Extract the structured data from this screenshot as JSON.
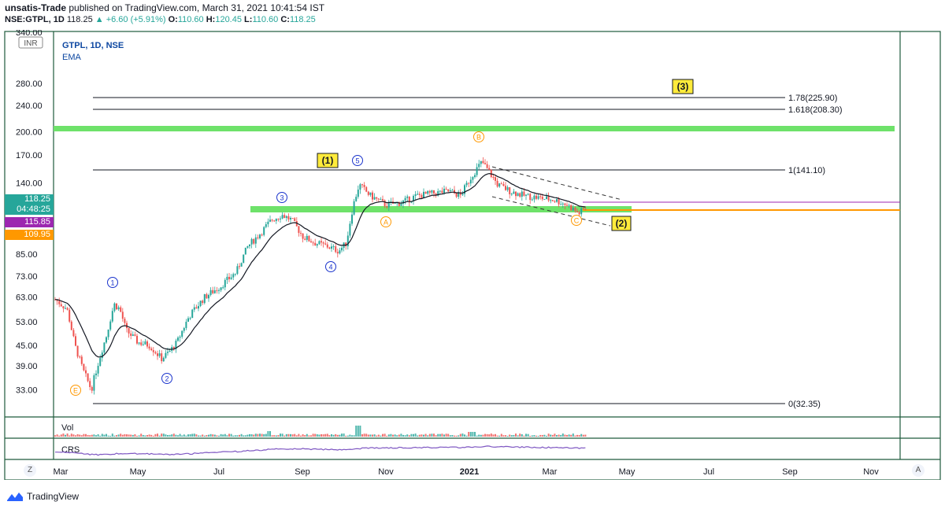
{
  "header": {
    "author": "unsatis-Trade",
    "published": "published on TradingView.com, March 31, 2021 10:41:54 IST",
    "symbol": "NSE:GTPL, 1D",
    "last": "118.25",
    "change": "▲ +6.60 (+5.91%)",
    "o_label": "O:",
    "o": "110.60",
    "h_label": "H:",
    "h": "120.45",
    "l_label": "L:",
    "l": "110.60",
    "c_label": "C:",
    "c": "118.25"
  },
  "legend": {
    "title": "GTPL, 1D, NSE",
    "indicator": "EMA"
  },
  "price_axis": {
    "currency": "INR",
    "ticks": [
      "340.00",
      "280.00",
      "240.00",
      "200.00",
      "170.00",
      "140.00",
      "85.00",
      "73.00",
      "63.00",
      "53.00",
      "45.00",
      "39.00",
      "33.00"
    ],
    "badges": [
      {
        "value": "118.25",
        "countdown": "04:48:25",
        "color": "#26a69a"
      },
      {
        "value": "115.85",
        "color": "#9c27b0"
      },
      {
        "value": "109.95",
        "color": "#ff9800"
      }
    ]
  },
  "time_axis": {
    "labels": [
      "Mar",
      "May",
      "Jul",
      "Sep",
      "Nov",
      "2021",
      "Mar",
      "May",
      "Jul",
      "Sep",
      "Nov"
    ],
    "bold_label": "2021"
  },
  "fib_levels": [
    {
      "ratio": "1.78",
      "price": "225.90",
      "label": "1.78(225.90)"
    },
    {
      "ratio": "1.618",
      "price": "208.30",
      "label": "1.618(208.30)"
    },
    {
      "ratio": "1",
      "price": "141.10",
      "label": "1(141.10)"
    },
    {
      "ratio": "0",
      "price": "32.35",
      "label": "0(32.35)"
    }
  ],
  "wave_labels": {
    "circled_blue": [
      "1",
      "2",
      "3",
      "4",
      "5"
    ],
    "circled_orange": [
      "A",
      "B",
      "C",
      "E"
    ],
    "boxed_yellow": [
      "(1)",
      "(2)",
      "(3)"
    ]
  },
  "panes": {
    "volume": "Vol",
    "crs": "CRS"
  },
  "buttons": {
    "left": "Z",
    "right": "A"
  },
  "branding": "TradingView",
  "colors": {
    "up": "#26a69a",
    "down": "#ef5350",
    "zone": "#6ee26a",
    "ema": "#131722",
    "crs": "#7e57c2",
    "box": "#ffeb3b"
  }
}
